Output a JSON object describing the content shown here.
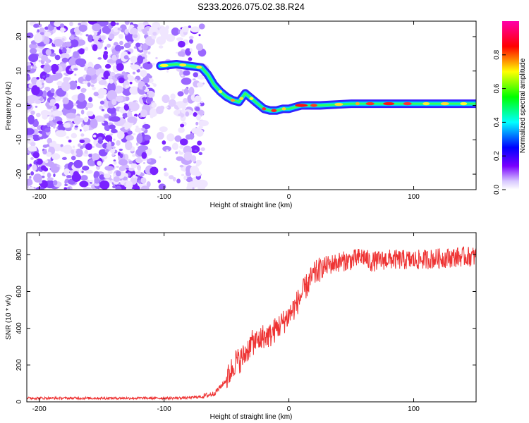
{
  "chart_data": [
    {
      "type": "heatmap",
      "title": "S233.2026.075.02.38.R24",
      "xlabel": "Height of straight line (km)",
      "ylabel": "Frequency (Hz)",
      "xlim": [
        -210,
        150
      ],
      "ylim": [
        -24.5,
        24.5
      ],
      "xticks": [
        -200,
        -100,
        0,
        100
      ],
      "yticks": [
        -20,
        -10,
        0,
        10,
        20
      ],
      "colorbar": {
        "label": "Normalized spectral amplitude",
        "range": [
          0,
          1
        ],
        "ticks": [
          "0.0",
          "0.2",
          "0.4",
          "0.6",
          "0.8"
        ],
        "colors": [
          "#ffffff",
          "#7a00ff",
          "#0000ff",
          "#00ffff",
          "#00ff00",
          "#ffff00",
          "#ff0000",
          "#ff00aa"
        ]
      },
      "trace": {
        "x": [
          -103,
          -90,
          -80,
          -70,
          -65,
          -60,
          -55,
          -50,
          -45,
          -40,
          -35,
          -30,
          -25,
          -20,
          -15,
          -10,
          -5,
          0,
          5,
          10,
          25,
          50,
          75,
          100,
          125,
          150
        ],
        "y": [
          11.5,
          12,
          11.5,
          11,
          9,
          6,
          4,
          2.5,
          1.5,
          1,
          3.5,
          2,
          0.5,
          -1,
          -1.5,
          -1.5,
          -1,
          -1,
          -0.5,
          0,
          0,
          0.5,
          0.5,
          0.5,
          0.5,
          0.5
        ]
      }
    },
    {
      "type": "line",
      "xlabel": "Height of straight line (km)",
      "ylabel": "SNR (10 * v/v)",
      "xlim": [
        -210,
        150
      ],
      "ylim": [
        0,
        920
      ],
      "xticks": [
        -200,
        -100,
        0,
        100
      ],
      "yticks": [
        0,
        200,
        400,
        600,
        800
      ],
      "series": [
        {
          "name": "SNR",
          "color": "#ee3333",
          "x": [
            -210,
            -150,
            -100,
            -80,
            -70,
            -60,
            -55,
            -50,
            -45,
            -42,
            -40,
            -35,
            -30,
            -25,
            -20,
            -15,
            -10,
            -5,
            0,
            5,
            10,
            15,
            20,
            25,
            30,
            40,
            50,
            60,
            65,
            80,
            100,
            120,
            140,
            150
          ],
          "y": [
            20,
            20,
            20,
            22,
            28,
            45,
            80,
            120,
            190,
            230,
            220,
            260,
            320,
            330,
            360,
            360,
            400,
            430,
            470,
            520,
            580,
            640,
            690,
            720,
            740,
            760,
            770,
            790,
            760,
            775,
            770,
            780,
            790,
            790
          ]
        }
      ]
    }
  ]
}
